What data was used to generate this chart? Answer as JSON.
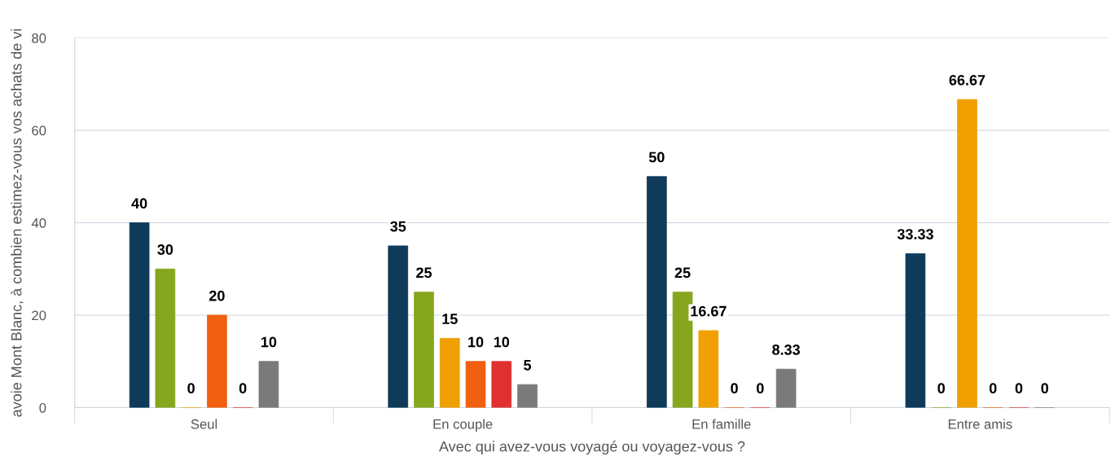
{
  "chart_data": {
    "type": "bar",
    "xlabel": "Avec qui avez-vous voyagé ou voyagez-vous ?",
    "ylabel": "avoie Mont Blanc, à combien estimez-vous vos achats de vi",
    "categories": [
      "Seul",
      "En couple",
      "En famille",
      "Entre amis"
    ],
    "series": [
      {
        "color": "#0f3a5a",
        "values": [
          40,
          35,
          50,
          33.33
        ]
      },
      {
        "color": "#86a61e",
        "values": [
          30,
          25,
          25,
          0
        ]
      },
      {
        "color": "#f0a000",
        "values": [
          0,
          15,
          16.67,
          66.67
        ]
      },
      {
        "color": "#f06010",
        "values": [
          20,
          10,
          0,
          0
        ]
      },
      {
        "color": "#e03030",
        "values": [
          0,
          10,
          0,
          0
        ]
      },
      {
        "color": "#7a7a7a",
        "values": [
          10,
          5,
          8.33,
          0
        ]
      }
    ],
    "ylim": [
      0,
      80
    ],
    "yticks": [
      0,
      20,
      40,
      60,
      80
    ],
    "grid": "y",
    "data_labels": true,
    "legend": false
  }
}
